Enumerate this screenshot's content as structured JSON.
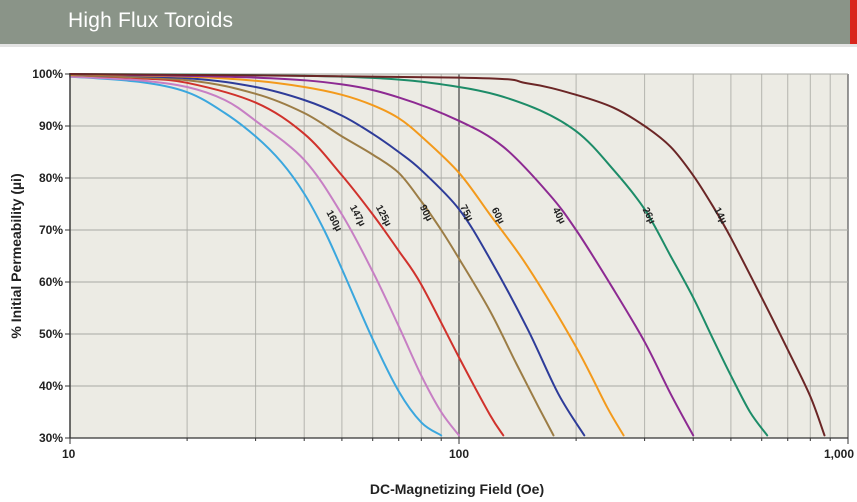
{
  "header": {
    "title": "High Flux Toroids",
    "bg_color": "#8a9488",
    "accent_color": "#d9261c"
  },
  "chart_data": {
    "type": "line",
    "title": "",
    "xlabel": "DC-Magnetizing Field (Oe)",
    "ylabel": "% Initial Permeability (µi)",
    "x_scale": "log",
    "xlim": [
      10,
      1000
    ],
    "ylim": [
      30,
      100
    ],
    "grid": true,
    "legend": "inline labels on curves",
    "x_ticks": [
      {
        "value": 10,
        "label": "10"
      },
      {
        "value": 100,
        "label": "100"
      },
      {
        "value": 1000,
        "label": "1,000"
      }
    ],
    "y_ticks": [
      {
        "value": 30,
        "label": "30%"
      },
      {
        "value": 40,
        "label": "40%"
      },
      {
        "value": 50,
        "label": "50%"
      },
      {
        "value": 60,
        "label": "60%"
      },
      {
        "value": 70,
        "label": "70%"
      },
      {
        "value": 80,
        "label": "80%"
      },
      {
        "value": 90,
        "label": "90%"
      },
      {
        "value": 100,
        "label": "100%"
      }
    ],
    "series": [
      {
        "name": "160µ",
        "color": "#3ba7de",
        "label_at": [
          47,
          71.5
        ],
        "points": [
          [
            10,
            99.5
          ],
          [
            15,
            98.5
          ],
          [
            20,
            96.5
          ],
          [
            25,
            92.5
          ],
          [
            30,
            88
          ],
          [
            35,
            83
          ],
          [
            40,
            77
          ],
          [
            45,
            70
          ],
          [
            50,
            62.5
          ],
          [
            60,
            49
          ],
          [
            70,
            39
          ],
          [
            80,
            33
          ],
          [
            90,
            30.5
          ]
        ]
      },
      {
        "name": "147µ",
        "color": "#c77fc4",
        "label_at": [
          54,
          72.5
        ],
        "points": [
          [
            10,
            99.5
          ],
          [
            15,
            98.8
          ],
          [
            20,
            97.5
          ],
          [
            25,
            95
          ],
          [
            30,
            91
          ],
          [
            40,
            83.5
          ],
          [
            50,
            73
          ],
          [
            60,
            62
          ],
          [
            70,
            51.5
          ],
          [
            80,
            42
          ],
          [
            90,
            35
          ],
          [
            100,
            30.5
          ]
        ]
      },
      {
        "name": "125µ",
        "color": "#d0322c",
        "label_at": [
          63,
          72.5
        ],
        "points": [
          [
            10,
            99.8
          ],
          [
            15,
            99.2
          ],
          [
            20,
            98.3
          ],
          [
            30,
            94.5
          ],
          [
            40,
            88.5
          ],
          [
            50,
            80.5
          ],
          [
            60,
            73
          ],
          [
            70,
            66
          ],
          [
            80,
            59.5
          ],
          [
            100,
            45.5
          ],
          [
            120,
            34.5
          ],
          [
            130,
            30.5
          ]
        ]
      },
      {
        "name": "90µ",
        "color": "#9c7d46",
        "label_at": [
          81,
          73
        ],
        "points": [
          [
            10,
            99.8
          ],
          [
            20,
            98.8
          ],
          [
            30,
            96.2
          ],
          [
            40,
            92.5
          ],
          [
            50,
            88
          ],
          [
            60,
            84.5
          ],
          [
            70,
            81
          ],
          [
            80,
            75.5
          ],
          [
            90,
            70
          ],
          [
            100,
            64.5
          ],
          [
            120,
            54.5
          ],
          [
            140,
            44.5
          ],
          [
            160,
            36
          ],
          [
            175,
            30.5
          ]
        ]
      },
      {
        "name": "75µ",
        "color": "#2e3c99",
        "label_at": [
          103,
          73
        ],
        "points": [
          [
            10,
            99.9
          ],
          [
            20,
            99.2
          ],
          [
            30,
            97.5
          ],
          [
            40,
            95
          ],
          [
            50,
            92
          ],
          [
            60,
            88.5
          ],
          [
            70,
            85
          ],
          [
            80,
            81.5
          ],
          [
            100,
            74
          ],
          [
            120,
            64.5
          ],
          [
            150,
            51
          ],
          [
            180,
            38.5
          ],
          [
            210,
            30.5
          ]
        ]
      },
      {
        "name": "60µ",
        "color": "#f39a1c",
        "label_at": [
          124,
          72.5
        ],
        "points": [
          [
            10,
            99.9
          ],
          [
            20,
            99.5
          ],
          [
            30,
            98.7
          ],
          [
            40,
            97.5
          ],
          [
            50,
            96
          ],
          [
            60,
            94
          ],
          [
            70,
            91.5
          ],
          [
            80,
            88
          ],
          [
            100,
            81
          ],
          [
            120,
            73
          ],
          [
            150,
            63
          ],
          [
            200,
            47.5
          ],
          [
            240,
            36
          ],
          [
            265,
            30.5
          ]
        ]
      },
      {
        "name": "40µ",
        "color": "#8d2a92",
        "label_at": [
          178,
          72.5
        ],
        "points": [
          [
            10,
            100
          ],
          [
            30,
            99.3
          ],
          [
            50,
            98
          ],
          [
            70,
            95.5
          ],
          [
            100,
            91
          ],
          [
            130,
            86
          ],
          [
            170,
            77
          ],
          [
            200,
            70
          ],
          [
            250,
            58.5
          ],
          [
            300,
            48.5
          ],
          [
            350,
            38.5
          ],
          [
            400,
            30.5
          ]
        ]
      },
      {
        "name": "26µ",
        "color": "#1d8c68",
        "label_at": [
          303,
          72.5
        ],
        "points": [
          [
            10,
            100
          ],
          [
            50,
            99.5
          ],
          [
            100,
            97.5
          ],
          [
            150,
            94
          ],
          [
            200,
            89
          ],
          [
            250,
            81.5
          ],
          [
            300,
            74
          ],
          [
            350,
            65
          ],
          [
            400,
            57
          ],
          [
            450,
            49
          ],
          [
            500,
            42
          ],
          [
            560,
            35
          ],
          [
            620,
            30.5
          ]
        ]
      },
      {
        "name": "14µ",
        "color": "#6b2626",
        "label_at": [
          463,
          72.5
        ],
        "points": [
          [
            10,
            100
          ],
          [
            100,
            99.3
          ],
          [
            150,
            98.2
          ],
          [
            200,
            96
          ],
          [
            250,
            93.5
          ],
          [
            300,
            90
          ],
          [
            350,
            86
          ],
          [
            400,
            80.5
          ],
          [
            450,
            74.5
          ],
          [
            500,
            68.5
          ],
          [
            600,
            57
          ],
          [
            700,
            47
          ],
          [
            800,
            38
          ],
          [
            870,
            30.5
          ]
        ]
      }
    ]
  }
}
